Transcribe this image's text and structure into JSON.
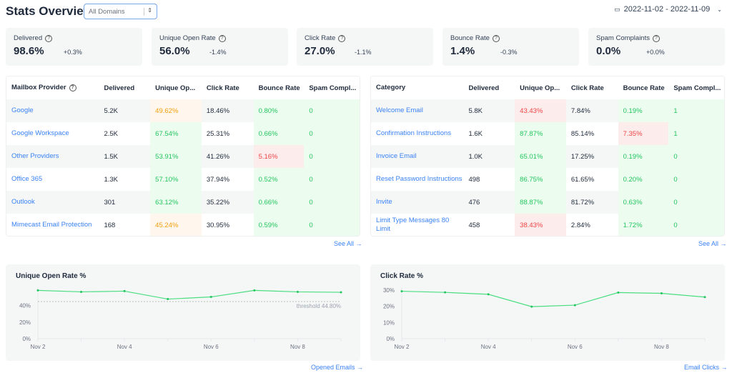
{
  "header": {
    "title": "Stats Overview",
    "domain_select": "All Domains",
    "date_range": "2022-11-02 - 2022-11-09"
  },
  "cards": [
    {
      "label": "Delivered",
      "value": "98.6%",
      "delta": "+0.3%"
    },
    {
      "label": "Unique Open Rate",
      "value": "56.0%",
      "delta": "-1.4%"
    },
    {
      "label": "Click Rate",
      "value": "27.0%",
      "delta": "-1.1%"
    },
    {
      "label": "Bounce Rate",
      "value": "1.4%",
      "delta": "-0.3%"
    },
    {
      "label": "Spam Complaints",
      "value": "0.0%",
      "delta": "+0.0%"
    }
  ],
  "status_colors": {
    "g": "#22c55e",
    "o": "#f59e0b",
    "r": "#ef4444"
  },
  "tables": [
    {
      "headers": [
        "Mailbox Provider",
        "Delivered",
        "Unique Op...",
        "Click Rate",
        "Bounce Rate",
        "Spam Compl..."
      ],
      "see_all": "See All →",
      "rows": [
        {
          "cells": [
            "Google",
            "5.2K",
            "49.62%",
            "18.46%",
            "0.80%",
            "0"
          ],
          "status": [
            "",
            "",
            "o",
            "",
            "g",
            "g"
          ]
        },
        {
          "cells": [
            "Google Workspace",
            "2.5K",
            "67.54%",
            "25.31%",
            "0.66%",
            "0"
          ],
          "status": [
            "",
            "",
            "g",
            "",
            "g",
            "g"
          ]
        },
        {
          "cells": [
            "Other Providers",
            "1.5K",
            "53.91%",
            "41.26%",
            "5.16%",
            "0"
          ],
          "status": [
            "",
            "",
            "g",
            "",
            "r",
            "g"
          ]
        },
        {
          "cells": [
            "Office 365",
            "1.3K",
            "57.10%",
            "37.94%",
            "0.52%",
            "0"
          ],
          "status": [
            "",
            "",
            "g",
            "",
            "g",
            "g"
          ]
        },
        {
          "cells": [
            "Outlook",
            "301",
            "63.12%",
            "35.22%",
            "0.66%",
            "0"
          ],
          "status": [
            "",
            "",
            "g",
            "",
            "g",
            "g"
          ]
        },
        {
          "cells": [
            "Mimecast Email Protection",
            "168",
            "45.24%",
            "30.95%",
            "0.59%",
            "0"
          ],
          "status": [
            "",
            "",
            "o",
            "",
            "g",
            "g"
          ]
        }
      ]
    },
    {
      "headers": [
        "Category",
        "Delivered",
        "Unique Op...",
        "Click Rate",
        "Bounce Rate",
        "Spam Compl..."
      ],
      "see_all": "See All →",
      "rows": [
        {
          "cells": [
            "Welcome Email",
            "5.8K",
            "43.43%",
            "7.84%",
            "0.19%",
            "1"
          ],
          "status": [
            "",
            "",
            "r",
            "",
            "g",
            "g"
          ]
        },
        {
          "cells": [
            "Confirmation Instructions",
            "1.6K",
            "87.87%",
            "85.14%",
            "7.35%",
            "1"
          ],
          "status": [
            "",
            "",
            "g",
            "",
            "r",
            "g"
          ]
        },
        {
          "cells": [
            "Invoice Email",
            "1.0K",
            "65.01%",
            "17.25%",
            "0.19%",
            "0"
          ],
          "status": [
            "",
            "",
            "g",
            "",
            "g",
            "g"
          ]
        },
        {
          "cells": [
            "Reset Password Instructions",
            "498",
            "86.75%",
            "61.65%",
            "0.20%",
            "0"
          ],
          "status": [
            "",
            "",
            "g",
            "",
            "g",
            "g"
          ]
        },
        {
          "cells": [
            "Invite",
            "476",
            "88.87%",
            "81.72%",
            "0.63%",
            "0"
          ],
          "status": [
            "",
            "",
            "g",
            "",
            "g",
            "g"
          ]
        },
        {
          "cells": [
            "Limit Type Messages 80 Limit",
            "458",
            "38.43%",
            "2.84%",
            "1.72%",
            "0"
          ],
          "status": [
            "",
            "",
            "r",
            "",
            "g",
            "g"
          ]
        }
      ]
    }
  ],
  "chart_data": [
    {
      "type": "line",
      "title": "Unique Open Rate %",
      "x": [
        "Nov 2",
        "Nov 3",
        "Nov 4",
        "Nov 5",
        "Nov 6",
        "Nov 7",
        "Nov 8",
        "Nov 9"
      ],
      "xtick_labels": [
        "Nov 2",
        "Nov 4",
        "Nov 6",
        "Nov 8"
      ],
      "values": [
        58.3,
        56.5,
        57.4,
        47.8,
        50.4,
        58.3,
        56.5,
        56.0
      ],
      "yticks": [
        "0%",
        "20%",
        "40%"
      ],
      "ylim": [
        0,
        60
      ],
      "threshold": 44.8,
      "threshold_label": "threshold 44.80%",
      "color": "#4ade80",
      "link": "Opened Emails →"
    },
    {
      "type": "line",
      "title": "Click Rate %",
      "x": [
        "Nov 2",
        "Nov 3",
        "Nov 4",
        "Nov 5",
        "Nov 6",
        "Nov 7",
        "Nov 8",
        "Nov 9"
      ],
      "xtick_labels": [
        "Nov 2",
        "Nov 4",
        "Nov 6",
        "Nov 8"
      ],
      "values": [
        29.3,
        28.6,
        27.4,
        19.8,
        20.7,
        28.5,
        28.0,
        25.7
      ],
      "yticks": [
        "0%",
        "10%",
        "20%",
        "30%"
      ],
      "ylim": [
        0,
        30
      ],
      "color": "#4ade80",
      "link": "Email Clicks →"
    }
  ]
}
